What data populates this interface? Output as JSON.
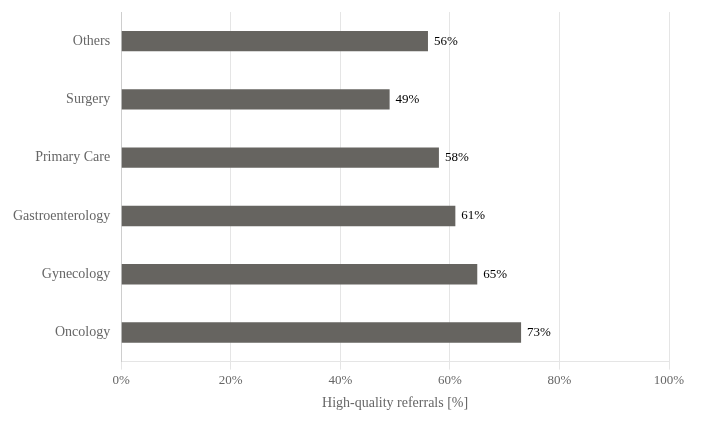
{
  "chart_data": {
    "type": "bar",
    "orientation": "horizontal",
    "categories": [
      "Oncology",
      "Gynecology",
      "Gastroenterology",
      "Primary Care",
      "Surgery",
      "Others"
    ],
    "values": [
      73,
      65,
      61,
      58,
      49,
      56
    ],
    "value_labels": [
      "73%",
      "65%",
      "61%",
      "58%",
      "49%",
      "56%"
    ],
    "data_labels": true,
    "color": "#666460",
    "xlabel": "High-quality referrals [%]",
    "xlim": [
      0,
      100
    ],
    "xticks": [
      {
        "value": 0,
        "label": "0%"
      },
      {
        "value": 20,
        "label": "20%"
      },
      {
        "value": 40,
        "label": "40%"
      },
      {
        "value": 60,
        "label": "60%"
      },
      {
        "value": 80,
        "label": "80%"
      },
      {
        "value": 100,
        "label": "100%"
      }
    ],
    "grid": true
  }
}
